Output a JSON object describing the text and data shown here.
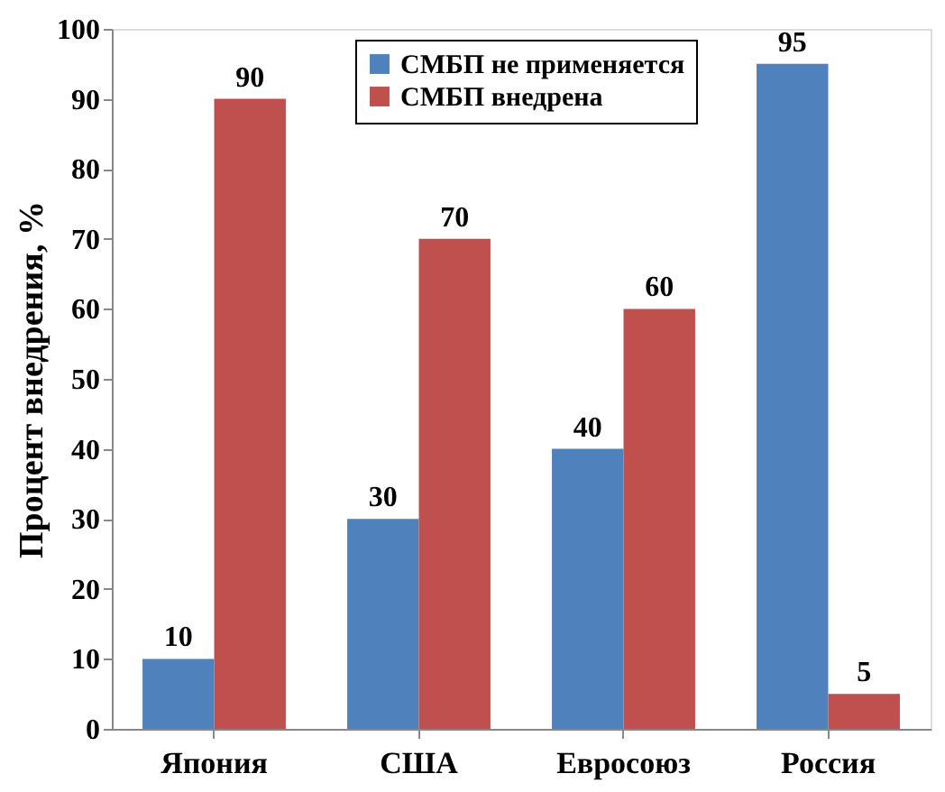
{
  "chart_data": {
    "type": "bar",
    "ylabel": "Процент внедрения, %",
    "categories": [
      "Япония",
      "США",
      "Евросоюз",
      "Россия"
    ],
    "series": [
      {
        "name": "СМБП не применяется",
        "color": "#4f81bd",
        "values": [
          10,
          30,
          40,
          95
        ]
      },
      {
        "name": "СМБП внедрена",
        "color": "#c0504d",
        "values": [
          90,
          70,
          60,
          5
        ]
      }
    ],
    "ylim": [
      0,
      100
    ],
    "yticks": [
      0,
      10,
      20,
      30,
      40,
      50,
      60,
      70,
      80,
      90,
      100
    ],
    "data_labels": true,
    "grid": false,
    "legend": "top right"
  }
}
